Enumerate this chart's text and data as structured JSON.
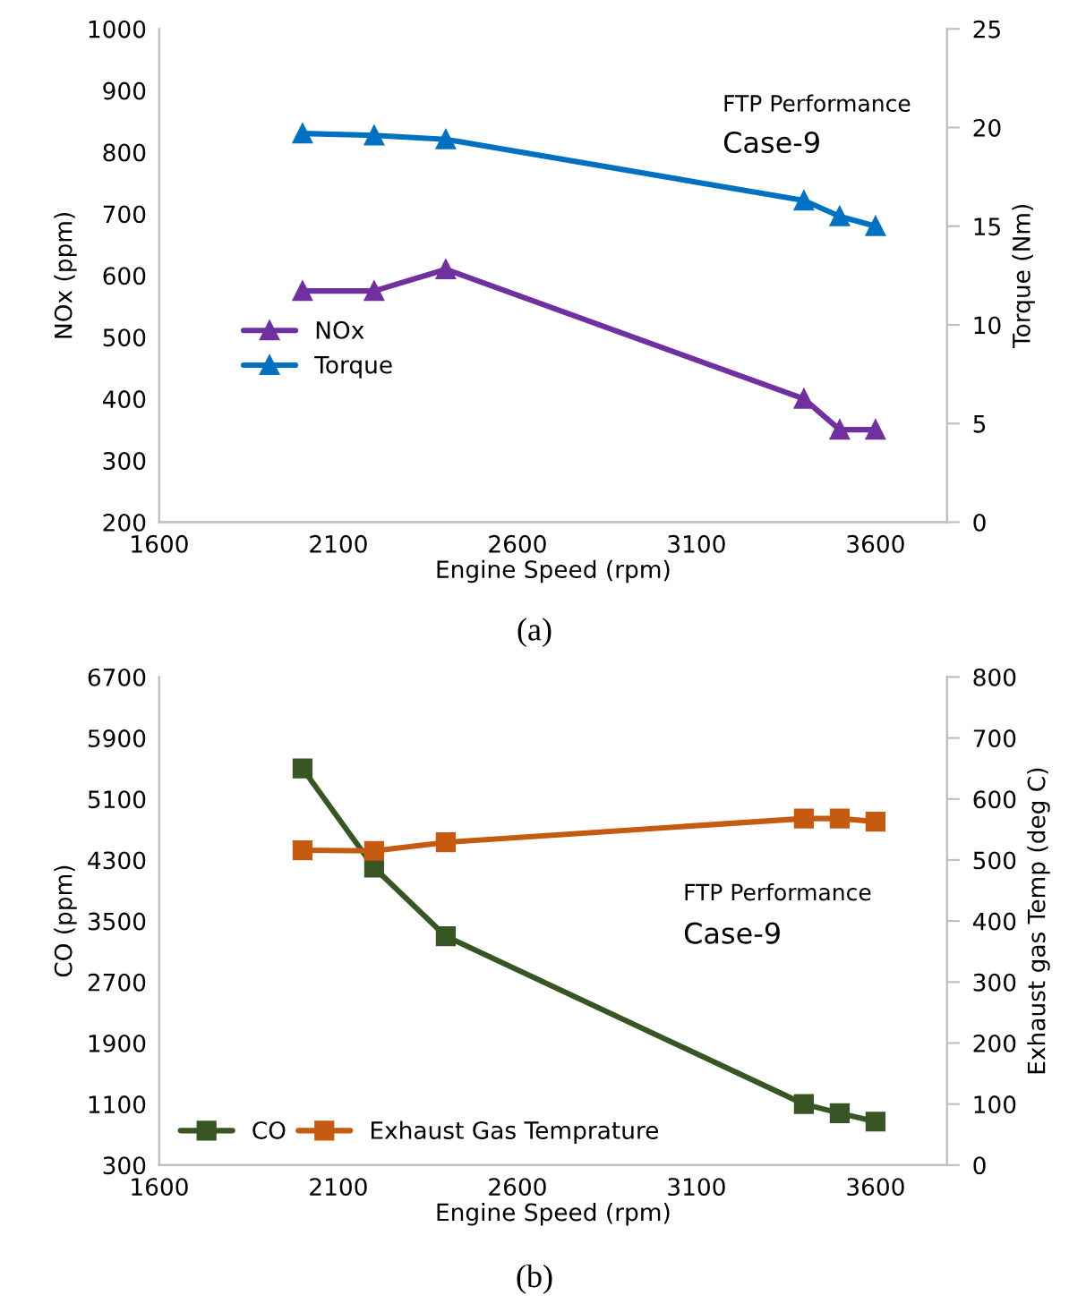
{
  "chart_data": [
    {
      "type": "line",
      "x": [
        2000,
        2200,
        2400,
        3400,
        3500,
        3600
      ],
      "xlabel": "Engine Speed (rpm)",
      "ylabel": "NOx (ppm)",
      "y2label": "Torque (Nm)",
      "series": [
        {
          "name": "NOx",
          "color": "#7030a0",
          "values": [
            575,
            575,
            610,
            400,
            350,
            350
          ]
        },
        {
          "name": "Torque",
          "color": "#0070c0",
          "axis": "y2",
          "values": [
            19.7,
            19.6,
            19.4,
            16.3,
            15.5,
            15.0
          ]
        }
      ],
      "xlim": [
        1600,
        3800
      ],
      "xticks": [
        1600,
        2100,
        2600,
        3100,
        3600
      ],
      "ylim": [
        200,
        1000
      ],
      "yticks": [
        200,
        300,
        400,
        500,
        600,
        700,
        800,
        900,
        1000
      ],
      "y2lim": [
        0,
        25
      ],
      "y2ticks": [
        0,
        5,
        10,
        15,
        20,
        25
      ],
      "marker": "triangle",
      "line_style": "solid",
      "grid": false,
      "legend": "left",
      "annotations": [
        "FTP Performance",
        "Case-9",
        "(a)"
      ]
    },
    {
      "type": "line",
      "x": [
        2000,
        2200,
        2400,
        3400,
        3500,
        3600
      ],
      "xlabel": "Engine Speed (rpm)",
      "ylabel": "CO (ppm)",
      "y2label": "Exhaust gas Temp (deg C)",
      "series": [
        {
          "name": "CO",
          "color": "#375623",
          "values": [
            5500,
            4200,
            3300,
            1100,
            980,
            870
          ]
        },
        {
          "name": "Exhaust Gas Temprature",
          "color": "#c55a11",
          "axis": "y2",
          "values": [
            516,
            515,
            529,
            568,
            568,
            563
          ]
        }
      ],
      "xlim": [
        1600,
        3800
      ],
      "xticks": [
        1600,
        2100,
        2600,
        3100,
        3600
      ],
      "ylim": [
        300,
        6700
      ],
      "yticks": [
        300,
        1100,
        1900,
        2700,
        3500,
        4300,
        5100,
        5900,
        6700
      ],
      "y2lim": [
        0,
        800
      ],
      "y2ticks": [
        0,
        100,
        200,
        300,
        400,
        500,
        600,
        700,
        800
      ],
      "marker": "square",
      "line_style": "solid",
      "grid": false,
      "legend": "bottom left",
      "annotations": [
        "FTP Performance",
        "Case-9",
        "(b)"
      ]
    }
  ]
}
